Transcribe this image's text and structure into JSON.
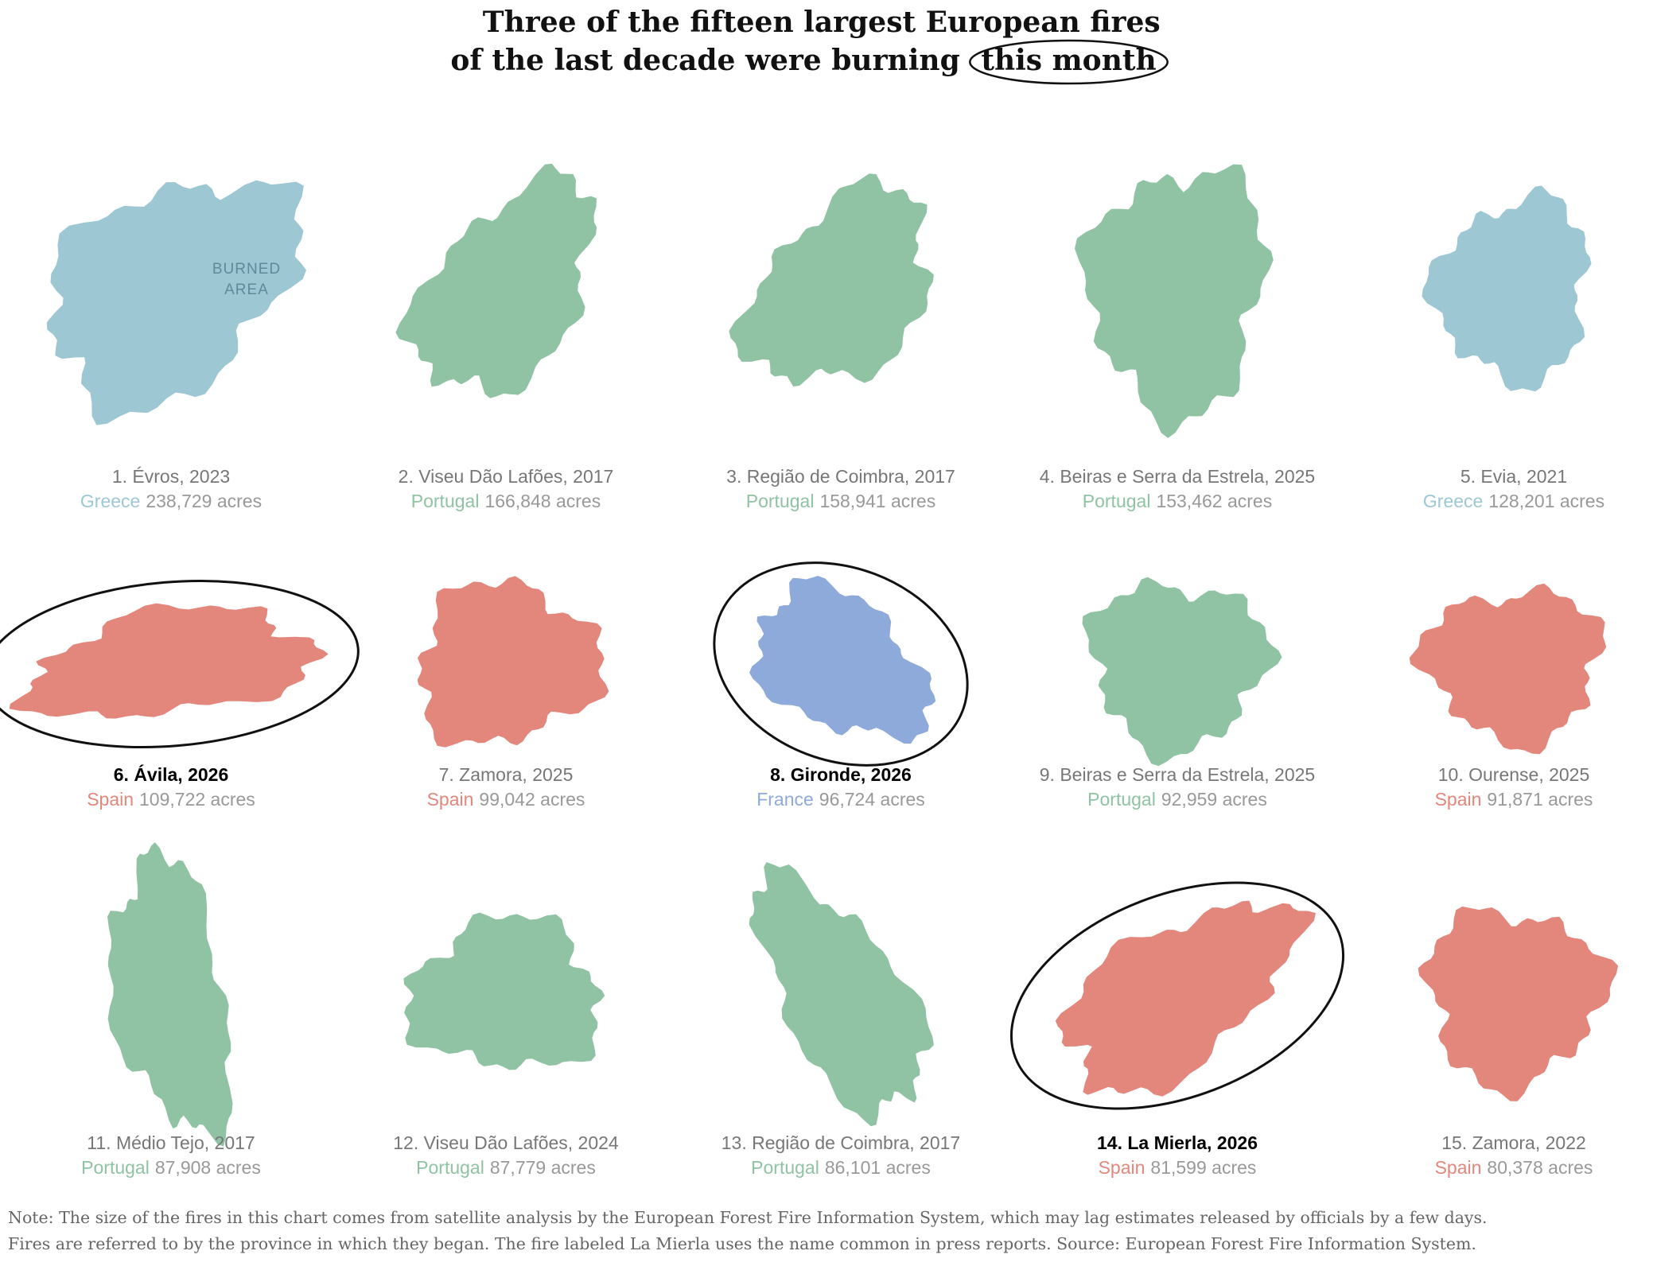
{
  "title": [
    "Three of the fifteen largest European fires",
    "of the last decade were burning",
    "this month"
  ],
  "burned_area_label": [
    "BURNED",
    "AREA"
  ],
  "fires": [
    {
      "title": "1. Évros, 2023",
      "country": "Greece",
      "acres": "238,729 acres",
      "color": "#9ec7d4",
      "highlight": false
    },
    {
      "title": "2. Viseu Dão Lafões, 2017",
      "country": "Portugal",
      "acres": "166,848 acres",
      "color": "#8fc3a3",
      "highlight": false
    },
    {
      "title": "3. Região de Coimbra, 2017",
      "country": "Portugal",
      "acres": "158,941 acres",
      "color": "#8fc3a3",
      "highlight": false
    },
    {
      "title": "4. Beiras e Serra da Estrela, 2025",
      "country": "Portugal",
      "acres": "153,462 acres",
      "color": "#8fc3a3",
      "highlight": false
    },
    {
      "title": "5. Evia, 2021",
      "country": "Greece",
      "acres": "128,201 acres",
      "color": "#9ec7d4",
      "highlight": false
    },
    {
      "title": "6. Ávila, 2026",
      "country": "Spain",
      "acres": "109,722 acres",
      "color": "#e3877d",
      "highlight": true
    },
    {
      "title": "7. Zamora, 2025",
      "country": "Spain",
      "acres": "99,042 acres",
      "color": "#e3877d",
      "highlight": false
    },
    {
      "title": "8. Gironde, 2026",
      "country": "France",
      "acres": "96,724 acres",
      "color": "#8eaadb",
      "highlight": true
    },
    {
      "title": "9. Beiras e Serra da Estrela, 2025",
      "country": "Portugal",
      "acres": "92,959 acres",
      "color": "#8fc3a3",
      "highlight": false
    },
    {
      "title": "10. Ourense, 2025",
      "country": "Spain",
      "acres": "91,871 acres",
      "color": "#e3877d",
      "highlight": false
    },
    {
      "title": "11. Médio Tejo, 2017",
      "country": "Portugal",
      "acres": "87,908 acres",
      "color": "#8fc3a3",
      "highlight": false
    },
    {
      "title": "12. Viseu Dão Lafões, 2024",
      "country": "Portugal",
      "acres": "87,779 acres",
      "color": "#8fc3a3",
      "highlight": false
    },
    {
      "title": "13. Região de Coimbra, 2017",
      "country": "Portugal",
      "acres": "86,101 acres",
      "color": "#8fc3a3",
      "highlight": false
    },
    {
      "title": "14. La Mierla, 2026",
      "country": "Spain",
      "acres": "81,599 acres",
      "color": "#e3877d",
      "highlight": true
    },
    {
      "title": "15. Zamora, 2022",
      "country": "Spain",
      "acres": "80,378 acres",
      "color": "#e3877d",
      "highlight": false
    }
  ],
  "note": [
    "Note: The size of the fires in this chart comes from satellite analysis by the European Forest Fire Information System, which may lag estimates released by officials by a few days.",
    "Fires are referred to by the province in which they began. The fire labeled La Mierla uses the name common in press reports. Source: European Forest Fire Information System."
  ]
}
